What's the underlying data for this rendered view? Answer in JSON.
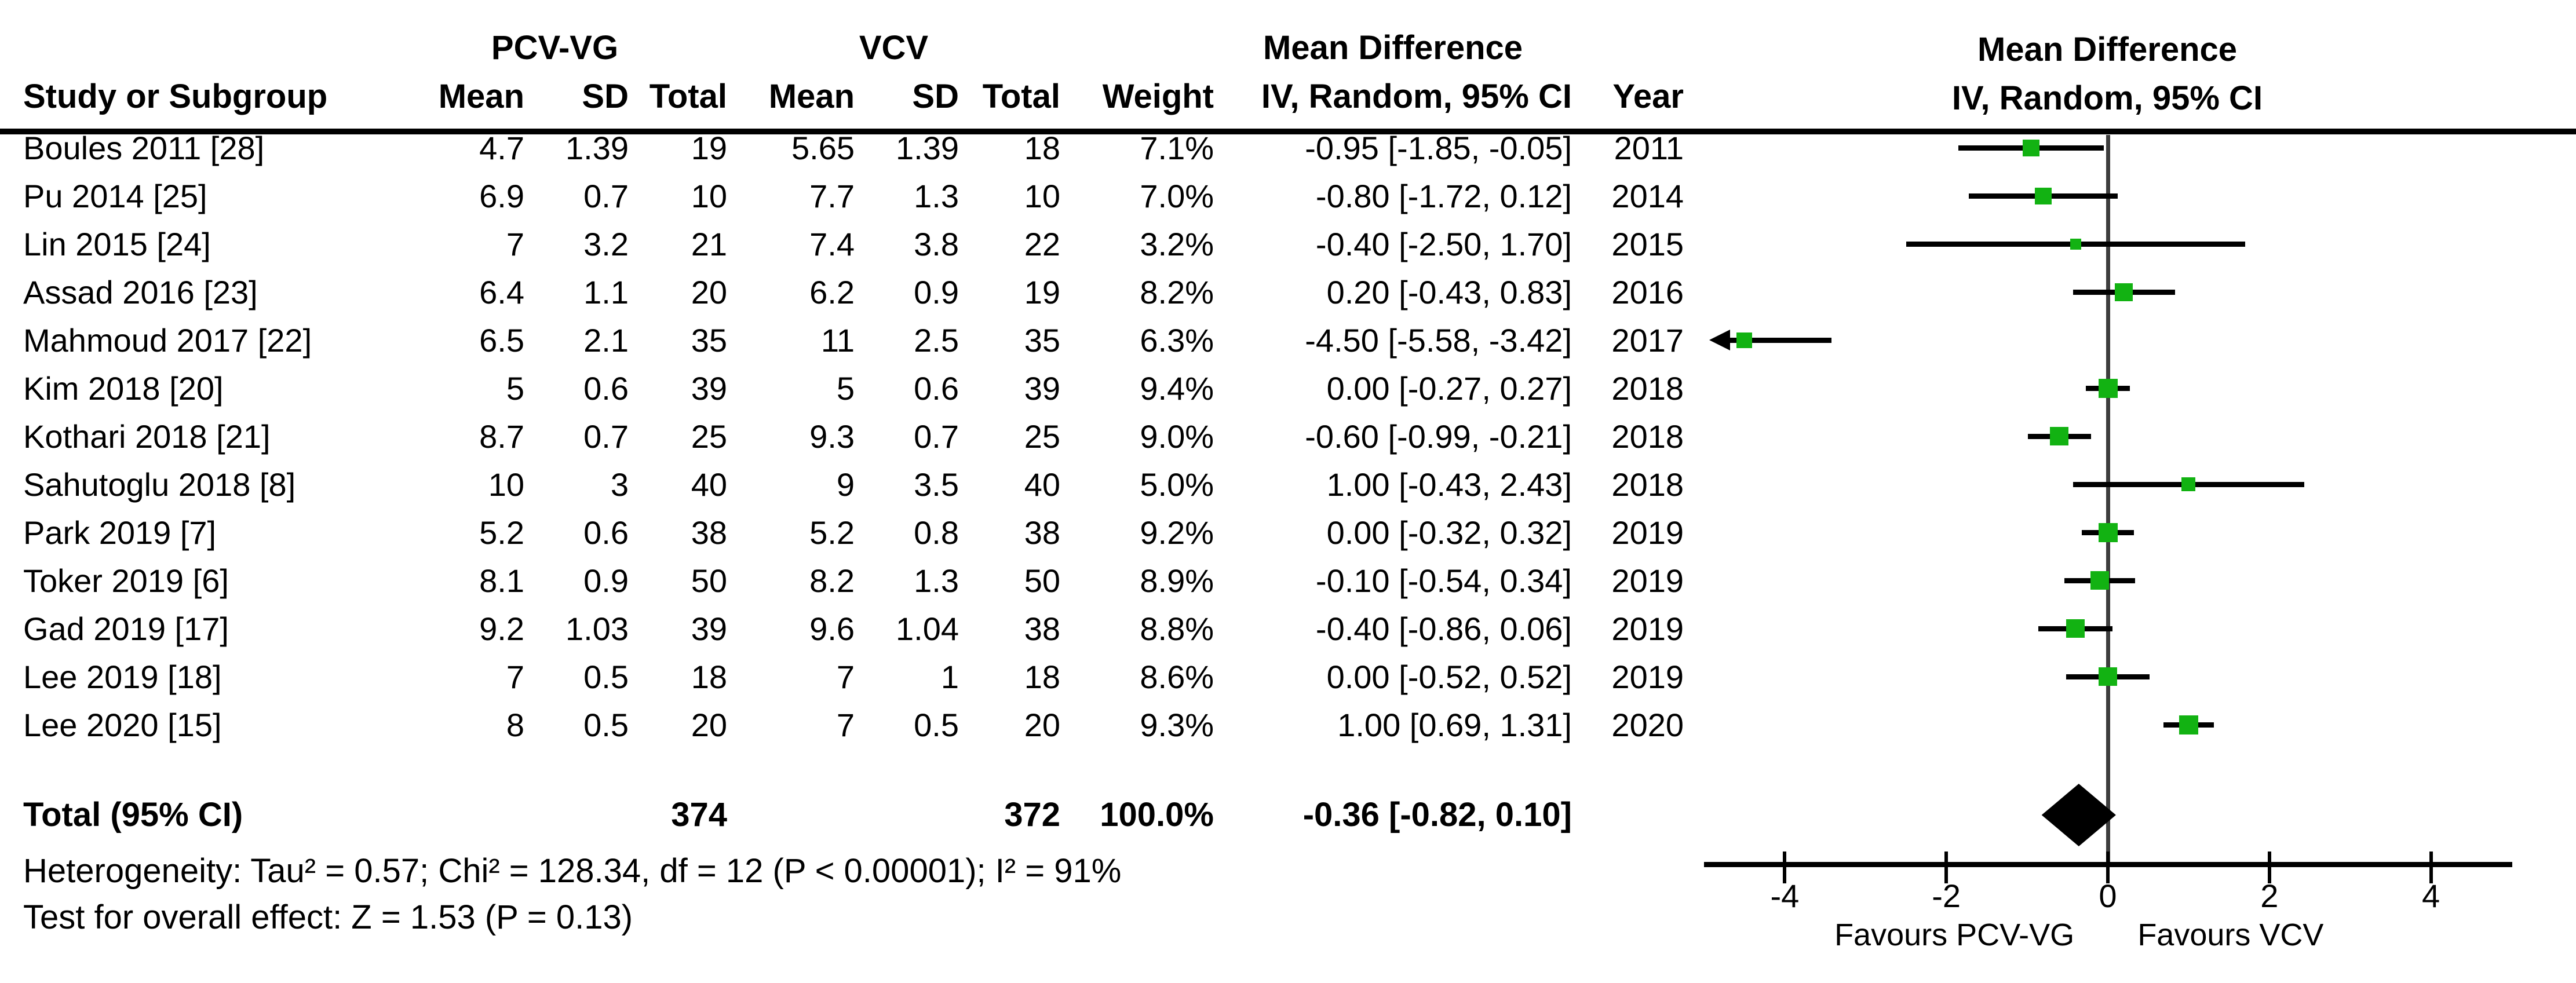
{
  "header": {
    "group1": "PCV-VG",
    "group2": "VCV",
    "effect_table": "Mean Difference",
    "effect_plot_line1": "Mean Difference",
    "effect_sub": "IV, Random, 95% CI",
    "columns": {
      "study": "Study or Subgroup",
      "mean1": "Mean",
      "sd1": "SD",
      "total1": "Total",
      "mean2": "Mean",
      "sd2": "SD",
      "total2": "Total",
      "weight": "Weight",
      "ci": "IV, Random, 95% CI",
      "year": "Year"
    }
  },
  "colors": {
    "marker_green": "#12b212",
    "line_black": "#000000",
    "zero_line_gray": "#3d3d3d"
  },
  "chart_data": {
    "type": "forest",
    "effect_measure": "Mean Difference",
    "model": "IV, Random, 95% CI",
    "x_axis": {
      "min": -5,
      "max": 5,
      "ticks": [
        -4,
        -2,
        0,
        2,
        4
      ],
      "favours_left": "Favours PCV-VG",
      "favours_right": "Favours VCV",
      "grid": false
    },
    "studies": [
      {
        "label": "Boules 2011 [28]",
        "mean1": "4.7",
        "sd1": "1.39",
        "total1": "19",
        "mean2": "5.65",
        "sd2": "1.39",
        "total2": "18",
        "weight": "7.1%",
        "ci": "-0.95 [-1.85, -0.05]",
        "year": "2011",
        "md": -0.95,
        "lo": -1.85,
        "hi": -0.05,
        "weight_pct": 7.1,
        "clamped_low": false
      },
      {
        "label": "Pu 2014 [25]",
        "mean1": "6.9",
        "sd1": "0.7",
        "total1": "10",
        "mean2": "7.7",
        "sd2": "1.3",
        "total2": "10",
        "weight": "7.0%",
        "ci": "-0.80 [-1.72, 0.12]",
        "year": "2014",
        "md": -0.8,
        "lo": -1.72,
        "hi": 0.12,
        "weight_pct": 7.0,
        "clamped_low": false
      },
      {
        "label": "Lin 2015 [24]",
        "mean1": "7",
        "sd1": "3.2",
        "total1": "21",
        "mean2": "7.4",
        "sd2": "3.8",
        "total2": "22",
        "weight": "3.2%",
        "ci": "-0.40 [-2.50, 1.70]",
        "year": "2015",
        "md": -0.4,
        "lo": -2.5,
        "hi": 1.7,
        "weight_pct": 3.2,
        "clamped_low": false
      },
      {
        "label": "Assad 2016 [23]",
        "mean1": "6.4",
        "sd1": "1.1",
        "total1": "20",
        "mean2": "6.2",
        "sd2": "0.9",
        "total2": "19",
        "weight": "8.2%",
        "ci": "0.20 [-0.43, 0.83]",
        "year": "2016",
        "md": 0.2,
        "lo": -0.43,
        "hi": 0.83,
        "weight_pct": 8.2,
        "clamped_low": false
      },
      {
        "label": "Mahmoud 2017 [22]",
        "mean1": "6.5",
        "sd1": "2.1",
        "total1": "35",
        "mean2": "11",
        "sd2": "2.5",
        "total2": "35",
        "weight": "6.3%",
        "ci": "-4.50 [-5.58, -3.42]",
        "year": "2017",
        "md": -4.5,
        "lo": -5.58,
        "hi": -3.42,
        "weight_pct": 6.3,
        "clamped_low": true
      },
      {
        "label": "Kim 2018 [20]",
        "mean1": "5",
        "sd1": "0.6",
        "total1": "39",
        "mean2": "5",
        "sd2": "0.6",
        "total2": "39",
        "weight": "9.4%",
        "ci": "0.00 [-0.27, 0.27]",
        "year": "2018",
        "md": 0.0,
        "lo": -0.27,
        "hi": 0.27,
        "weight_pct": 9.4,
        "clamped_low": false
      },
      {
        "label": "Kothari 2018 [21]",
        "mean1": "8.7",
        "sd1": "0.7",
        "total1": "25",
        "mean2": "9.3",
        "sd2": "0.7",
        "total2": "25",
        "weight": "9.0%",
        "ci": "-0.60 [-0.99, -0.21]",
        "year": "2018",
        "md": -0.6,
        "lo": -0.99,
        "hi": -0.21,
        "weight_pct": 9.0,
        "clamped_low": false
      },
      {
        "label": "Sahutoglu 2018 [8]",
        "mean1": "10",
        "sd1": "3",
        "total1": "40",
        "mean2": "9",
        "sd2": "3.5",
        "total2": "40",
        "weight": "5.0%",
        "ci": "1.00 [-0.43, 2.43]",
        "year": "2018",
        "md": 1.0,
        "lo": -0.43,
        "hi": 2.43,
        "weight_pct": 5.0,
        "clamped_low": false
      },
      {
        "label": "Park 2019 [7]",
        "mean1": "5.2",
        "sd1": "0.6",
        "total1": "38",
        "mean2": "5.2",
        "sd2": "0.8",
        "total2": "38",
        "weight": "9.2%",
        "ci": "0.00 [-0.32, 0.32]",
        "year": "2019",
        "md": 0.0,
        "lo": -0.32,
        "hi": 0.32,
        "weight_pct": 9.2,
        "clamped_low": false
      },
      {
        "label": "Toker 2019 [6]",
        "mean1": "8.1",
        "sd1": "0.9",
        "total1": "50",
        "mean2": "8.2",
        "sd2": "1.3",
        "total2": "50",
        "weight": "8.9%",
        "ci": "-0.10 [-0.54, 0.34]",
        "year": "2019",
        "md": -0.1,
        "lo": -0.54,
        "hi": 0.34,
        "weight_pct": 8.9,
        "clamped_low": false
      },
      {
        "label": "Gad 2019 [17]",
        "mean1": "9.2",
        "sd1": "1.03",
        "total1": "39",
        "mean2": "9.6",
        "sd2": "1.04",
        "total2": "38",
        "weight": "8.8%",
        "ci": "-0.40 [-0.86, 0.06]",
        "year": "2019",
        "md": -0.4,
        "lo": -0.86,
        "hi": 0.06,
        "weight_pct": 8.8,
        "clamped_low": false
      },
      {
        "label": "Lee 2019 [18]",
        "mean1": "7",
        "sd1": "0.5",
        "total1": "18",
        "mean2": "7",
        "sd2": "1",
        "total2": "18",
        "weight": "8.6%",
        "ci": "0.00 [-0.52, 0.52]",
        "year": "2019",
        "md": 0.0,
        "lo": -0.52,
        "hi": 0.52,
        "weight_pct": 8.6,
        "clamped_low": false
      },
      {
        "label": "Lee 2020 [15]",
        "mean1": "8",
        "sd1": "0.5",
        "total1": "20",
        "mean2": "7",
        "sd2": "0.5",
        "total2": "20",
        "weight": "9.3%",
        "ci": "1.00 [0.69, 1.31]",
        "year": "2020",
        "md": 1.0,
        "lo": 0.69,
        "hi": 1.31,
        "weight_pct": 9.3,
        "clamped_low": false
      }
    ],
    "total": {
      "label": "Total (95% CI)",
      "total1": "374",
      "total2": "372",
      "weight": "100.0%",
      "ci": "-0.36 [-0.82, 0.10]",
      "md": -0.36,
      "lo": -0.82,
      "hi": 0.1
    },
    "heterogeneity": "Heterogeneity: Tau² = 0.57; Chi² = 128.34, df = 12 (P < 0.00001); I² = 91%",
    "overall_effect": "Test for overall effect: Z = 1.53 (P = 0.13)"
  }
}
